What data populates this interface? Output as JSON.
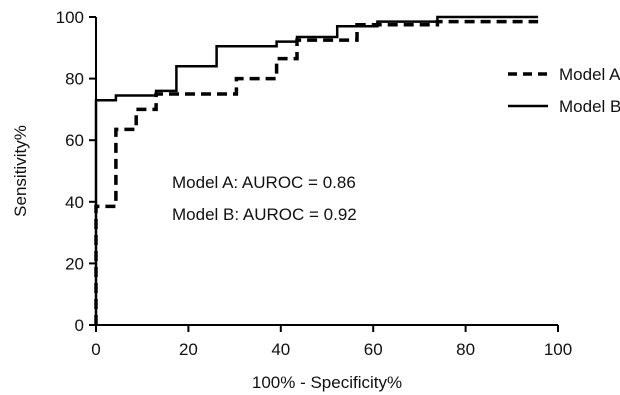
{
  "chart_data": {
    "type": "line",
    "title": "",
    "xlabel": "100% - Specificity%",
    "ylabel": "Sensitivity%",
    "xlim": [
      0,
      100
    ],
    "ylim": [
      0,
      100
    ],
    "xticks": [
      0,
      20,
      40,
      60,
      80,
      100
    ],
    "yticks": [
      0,
      20,
      40,
      60,
      80,
      100
    ],
    "grid": false,
    "legend_position": "top-right",
    "series": [
      {
        "name": "Model A",
        "style": "dashed",
        "color": "#000000",
        "x": [
          0,
          0,
          4.3,
          4.3,
          8.7,
          8.7,
          13,
          13,
          30.4,
          30.4,
          39.1,
          39.1,
          43.5,
          43.5,
          56.5,
          56.5,
          73.9,
          73.9,
          95.7
        ],
        "y": [
          0,
          38.5,
          38.5,
          63.5,
          63.5,
          70,
          70,
          75,
          75,
          80,
          80,
          86.5,
          86.5,
          92.5,
          92.5,
          97.5,
          97.5,
          98.5,
          98.5
        ]
      },
      {
        "name": "Model B",
        "style": "solid",
        "color": "#000000",
        "x": [
          0,
          0,
          4.3,
          4.3,
          13,
          13,
          17.4,
          17.4,
          26.1,
          26.1,
          39.1,
          39.1,
          43.5,
          43.5,
          52.2,
          52.2,
          60.9,
          60.9,
          73.9,
          73.9,
          95.7
        ],
        "y": [
          0,
          73,
          73,
          74.5,
          74.5,
          76,
          76,
          84,
          84,
          90.5,
          90.5,
          92,
          92,
          93.5,
          93.5,
          97,
          97,
          98.5,
          98.5,
          100,
          100
        ]
      }
    ],
    "annotations": [
      "Model A: AUROC = 0.86",
      "Model B: AUROC = 0.92"
    ]
  }
}
